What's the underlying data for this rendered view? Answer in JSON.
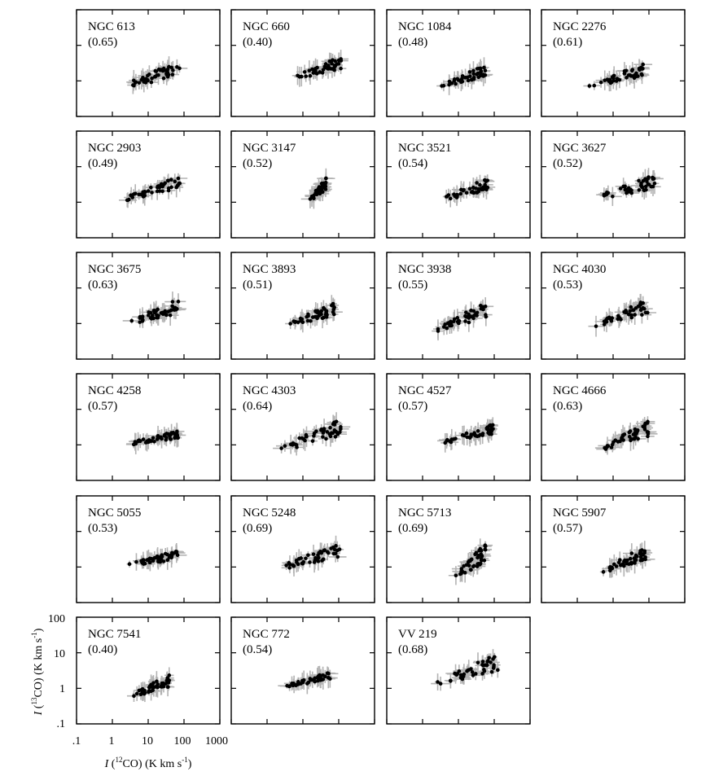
{
  "chart_data": {
    "type": "scatter",
    "layout": "small-multiples",
    "xlabel": {
      "italic": "I",
      "mid": " (",
      "sup": "12",
      "rest": "CO) (K km s",
      "exp": "-1",
      "end": ")"
    },
    "ylabel": {
      "italic": "I",
      "mid": " (",
      "sup": "13",
      "rest": "CO) (K km s",
      "exp": "-1",
      "end": ")"
    },
    "xscale": "log",
    "yscale": "log",
    "xlim": [
      0.1,
      1000
    ],
    "ylim": [
      0.1,
      100
    ],
    "xtick_labels": [
      ".1",
      "1",
      "10",
      "100",
      "1000"
    ],
    "ytick_labels": [
      ".1",
      "1",
      "10",
      "100"
    ],
    "marker_color": "#000000",
    "errorbar_color": "#b3b3b3",
    "panels": [
      {
        "name": "NGC 613",
        "value": "(0.65)",
        "x_range": [
          1.5,
          80
        ],
        "y_range": [
          0.4,
          4
        ]
      },
      {
        "name": "NGC 660",
        "value": "(0.40)",
        "x_range": [
          5,
          120
        ],
        "y_range": [
          0.8,
          5
        ]
      },
      {
        "name": "NGC 1084",
        "value": "(0.48)",
        "x_range": [
          3,
          60
        ],
        "y_range": [
          0.5,
          3
        ]
      },
      {
        "name": "NGC 2276",
        "value": "(0.61)",
        "x_range": [
          2,
          70
        ],
        "y_range": [
          0.5,
          3
        ]
      },
      {
        "name": "NGC 2903",
        "value": "(0.49)",
        "x_range": [
          2,
          80
        ],
        "y_range": [
          0.8,
          6
        ]
      },
      {
        "name": "NGC 3147",
        "value": "(0.52)",
        "x_range": [
          15,
          45
        ],
        "y_range": [
          0.8,
          5
        ]
      },
      {
        "name": "NGC 3521",
        "value": "(0.54)",
        "x_range": [
          3,
          70
        ],
        "y_range": [
          0.8,
          5
        ]
      },
      {
        "name": "NGC 3627",
        "value": "(0.52)",
        "x_range": [
          2,
          150
        ],
        "y_range": [
          0.8,
          6
        ]
      },
      {
        "name": "NGC 3675",
        "value": "(0.63)",
        "x_range": [
          2,
          70
        ],
        "y_range": [
          0.6,
          5
        ]
      },
      {
        "name": "NGC 3893",
        "value": "(0.51)",
        "x_range": [
          3,
          80
        ],
        "y_range": [
          0.6,
          4
        ]
      },
      {
        "name": "NGC 3938",
        "value": "(0.55)",
        "x_range": [
          2,
          60
        ],
        "y_range": [
          0.4,
          4
        ]
      },
      {
        "name": "NGC 4030",
        "value": "(0.53)",
        "x_range": [
          3,
          100
        ],
        "y_range": [
          0.6,
          5
        ]
      },
      {
        "name": "NGC 4258",
        "value": "(0.57)",
        "x_range": [
          2,
          70
        ],
        "y_range": [
          0.8,
          2.5
        ]
      },
      {
        "name": "NGC 4303",
        "value": "(0.64)",
        "x_range": [
          2,
          120
        ],
        "y_range": [
          0.4,
          6
        ]
      },
      {
        "name": "NGC 4527",
        "value": "(0.57)",
        "x_range": [
          3,
          100
        ],
        "y_range": [
          0.8,
          4
        ]
      },
      {
        "name": "NGC 4666",
        "value": "(0.63)",
        "x_range": [
          5,
          100
        ],
        "y_range": [
          0.5,
          5
        ]
      },
      {
        "name": "NGC 5055",
        "value": "(0.53)",
        "x_range": [
          2,
          70
        ],
        "y_range": [
          0.8,
          3
        ]
      },
      {
        "name": "NGC 5248",
        "value": "(0.69)",
        "x_range": [
          2,
          120
        ],
        "y_range": [
          0.6,
          5
        ]
      },
      {
        "name": "NGC 5713",
        "value": "(0.69)",
        "x_range": [
          8,
          60
        ],
        "y_range": [
          0.3,
          5
        ]
      },
      {
        "name": "NGC 5907",
        "value": "(0.57)",
        "x_range": [
          5,
          80
        ],
        "y_range": [
          0.5,
          4
        ]
      },
      {
        "name": "NGC 7541",
        "value": "(0.40)",
        "x_range": [
          3,
          40
        ],
        "y_range": [
          0.4,
          2.5
        ]
      },
      {
        "name": "NGC 772",
        "value": "(0.54)",
        "x_range": [
          3,
          60
        ],
        "y_range": [
          0.9,
          3
        ]
      },
      {
        "name": "VV 219",
        "value": "(0.68)",
        "x_range": [
          2,
          150
        ],
        "y_range": [
          0.8,
          10
        ]
      }
    ]
  }
}
